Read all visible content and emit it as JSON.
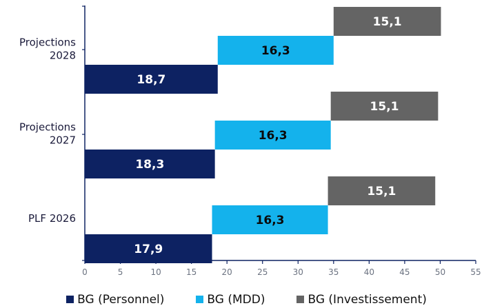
{
  "chart_data": {
    "type": "bar",
    "orientation": "horizontal",
    "stacking": "waterfall",
    "categories": [
      "Projections 2028",
      "Projections 2027",
      "PLF 2026"
    ],
    "category_lines": [
      [
        "Projections",
        "2028"
      ],
      [
        "Projections",
        "2027"
      ],
      [
        "PLF 2026"
      ]
    ],
    "series": [
      {
        "name": "BG (Personnel)",
        "color": "#0d2262",
        "label_color": "#ffffff",
        "values": [
          18.7,
          18.3,
          17.9
        ],
        "labels": [
          "18,7",
          "18,3",
          "17,9"
        ]
      },
      {
        "name": "BG (MDD)",
        "color": "#14b2ec",
        "label_color": "#0a0a0a",
        "values": [
          16.3,
          16.3,
          16.3
        ],
        "labels": [
          "16,3",
          "16,3",
          "16,3"
        ]
      },
      {
        "name": "BG (Investissement)",
        "color": "#646464",
        "label_color": "#ffffff",
        "values": [
          15.1,
          15.1,
          15.1
        ],
        "labels": [
          "15,1",
          "15,1",
          "15,1"
        ]
      }
    ],
    "x_ticks": [
      "0",
      "5",
      "10",
      "15",
      "20",
      "25",
      "30",
      "35",
      "40",
      "45",
      "50",
      "55"
    ],
    "xlim": [
      0,
      55
    ],
    "title": "",
    "xlabel": "",
    "ylabel": "",
    "grid": false,
    "legend_position": "bottom"
  }
}
